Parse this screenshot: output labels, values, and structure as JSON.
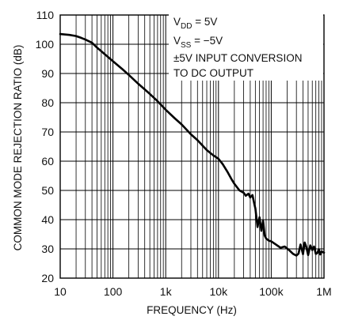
{
  "chart_data": {
    "type": "line",
    "title": "",
    "xlabel": "FREQUENCY (Hz)",
    "ylabel": "COMMON MODE REJECTION RATIO (dB)",
    "x_scale": "log",
    "xlim": [
      10,
      1000000
    ],
    "ylim": [
      20,
      110
    ],
    "grid": true,
    "x_ticks": [
      {
        "value": 10,
        "label": "10"
      },
      {
        "value": 100,
        "label": "100"
      },
      {
        "value": 1000,
        "label": "1k"
      },
      {
        "value": 10000,
        "label": "10k"
      },
      {
        "value": 100000,
        "label": "100k"
      },
      {
        "value": 1000000,
        "label": "1M"
      }
    ],
    "y_ticks": [
      {
        "value": 20,
        "label": "20"
      },
      {
        "value": 30,
        "label": "30"
      },
      {
        "value": 40,
        "label": "40"
      },
      {
        "value": 50,
        "label": "50"
      },
      {
        "value": 60,
        "label": "60"
      },
      {
        "value": 70,
        "label": "70"
      },
      {
        "value": 80,
        "label": "80"
      },
      {
        "value": 90,
        "label": "90"
      },
      {
        "value": 100,
        "label": "100"
      },
      {
        "value": 110,
        "label": "110"
      }
    ],
    "annotation": {
      "line1": {
        "main": "V",
        "sub": "DD",
        "rest": " = 5V"
      },
      "line2": {
        "main": "V",
        "sub": "SS",
        "rest": " = −5V"
      },
      "line3": "±5V INPUT CONVERSION",
      "line4": "TO DC OUTPUT"
    },
    "series": [
      {
        "color": "#000000",
        "x": [
          10,
          15,
          20,
          25,
          30,
          40,
          50,
          70,
          100,
          150,
          200,
          300,
          500,
          700,
          1000,
          1500,
          2000,
          3000,
          4000,
          5000,
          6000,
          7000,
          8000,
          10000,
          12000,
          15000,
          18000,
          20000,
          25000,
          30000,
          33000,
          37000,
          40000,
          44000,
          48000,
          50000,
          55000,
          60000,
          65000,
          70000,
          75000,
          80000,
          90000,
          100000,
          120000,
          150000,
          180000,
          200000,
          230000,
          260000,
          300000,
          330000,
          360000,
          400000,
          430000,
          460000,
          500000,
          550000,
          600000,
          650000,
          700000,
          750000,
          800000,
          850000,
          900000,
          1000000
        ],
        "y": [
          103.5,
          103.2,
          102.8,
          102.2,
          101.6,
          100.5,
          98.8,
          96.6,
          94.2,
          91.5,
          89.5,
          86.5,
          83,
          80.5,
          77.6,
          74.6,
          72.6,
          69.2,
          67.2,
          65.3,
          63.8,
          62.8,
          62,
          60.8,
          59,
          56.2,
          53.6,
          52.3,
          50,
          49.2,
          48.2,
          48.9,
          47.6,
          48.4,
          45.2,
          43.8,
          37.5,
          40.8,
          36.2,
          39.6,
          34.6,
          33.6,
          32.8,
          32.6,
          31.6,
          30.4,
          30.8,
          30.2,
          29.2,
          28.3,
          27.7,
          28.4,
          31.5,
          28.2,
          32.2,
          30.8,
          27.9,
          31.2,
          29.6,
          30.8,
          28.3,
          28.6,
          29.9,
          28.1,
          29.1,
          28.7
        ]
      }
    ]
  }
}
